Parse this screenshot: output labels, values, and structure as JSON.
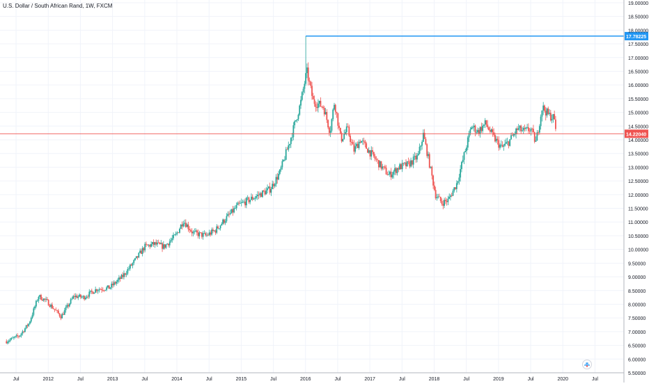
{
  "header": {
    "title": "U.S. Dollar / South African Rand, 1W, FXCM"
  },
  "price_axis": {
    "ticks": [
      "19.00000",
      "18.50000",
      "18.00000",
      "17.50000",
      "17.00000",
      "16.50000",
      "16.00000",
      "15.50000",
      "15.00000",
      "14.50000",
      "14.00000",
      "13.50000",
      "13.00000",
      "12.50000",
      "12.00000",
      "11.50000",
      "11.00000",
      "10.50000",
      "10.00000",
      "9.50000",
      "9.00000",
      "8.50000",
      "8.00000",
      "7.50000",
      "7.00000",
      "6.50000",
      "6.00000",
      "5.50000"
    ]
  },
  "time_axis": {
    "labels": [
      "Jul",
      "2012",
      "Jul",
      "2013",
      "Jul",
      "2014",
      "Jul",
      "2015",
      "Jul",
      "2016",
      "Jul",
      "2017",
      "Jul",
      "2018",
      "Jul",
      "2019",
      "Jul",
      "2020",
      "Jul"
    ]
  },
  "price_labels": {
    "high": "17.78225",
    "last": "14.22040"
  },
  "colors": {
    "up": "#26a69a",
    "down": "#ef5350",
    "high_line": "#2196f3",
    "last_line": "#ef5350",
    "grid": "#f0f3fa",
    "text": "#131722"
  },
  "chart_data": {
    "type": "candlestick",
    "title": "U.S. Dollar / South African Rand, 1W, FXCM",
    "ylim": [
      5.5,
      19.1
    ],
    "xlim": [
      2011.25,
      2020.95
    ],
    "high_line": 17.78225,
    "last_price": 14.2204,
    "grid": true,
    "anchors": [
      [
        2011.35,
        6.65
      ],
      [
        2011.55,
        6.85
      ],
      [
        2011.7,
        7.3
      ],
      [
        2011.85,
        8.3
      ],
      [
        2011.98,
        8.1
      ],
      [
        2012.2,
        7.55
      ],
      [
        2012.4,
        8.3
      ],
      [
        2012.55,
        8.25
      ],
      [
        2012.75,
        8.55
      ],
      [
        2012.95,
        8.6
      ],
      [
        2013.15,
        9.0
      ],
      [
        2013.35,
        9.6
      ],
      [
        2013.5,
        10.1
      ],
      [
        2013.65,
        10.2
      ],
      [
        2013.8,
        10.1
      ],
      [
        2013.98,
        10.5
      ],
      [
        2014.1,
        11.05
      ],
      [
        2014.25,
        10.6
      ],
      [
        2014.45,
        10.5
      ],
      [
        2014.6,
        10.7
      ],
      [
        2014.75,
        11.1
      ],
      [
        2014.95,
        11.6
      ],
      [
        2015.2,
        11.9
      ],
      [
        2015.45,
        12.2
      ],
      [
        2015.6,
        12.8
      ],
      [
        2015.75,
        13.9
      ],
      [
        2015.92,
        15.3
      ],
      [
        2016.02,
        16.5
      ],
      [
        2016.12,
        15.4
      ],
      [
        2016.28,
        15.2
      ],
      [
        2016.38,
        14.3
      ],
      [
        2016.45,
        15.4
      ],
      [
        2016.55,
        14.0
      ],
      [
        2016.65,
        14.4
      ],
      [
        2016.75,
        13.6
      ],
      [
        2016.85,
        14.0
      ],
      [
        2016.95,
        13.7
      ],
      [
        2017.15,
        13.1
      ],
      [
        2017.3,
        12.7
      ],
      [
        2017.45,
        13.0
      ],
      [
        2017.6,
        13.1
      ],
      [
        2017.75,
        13.4
      ],
      [
        2017.83,
        14.2
      ],
      [
        2017.92,
        13.2
      ],
      [
        2018.02,
        12.0
      ],
      [
        2018.12,
        11.7
      ],
      [
        2018.22,
        11.8
      ],
      [
        2018.35,
        12.4
      ],
      [
        2018.45,
        13.3
      ],
      [
        2018.58,
        14.5
      ],
      [
        2018.68,
        14.3
      ],
      [
        2018.8,
        14.6
      ],
      [
        2018.92,
        14.1
      ],
      [
        2019.05,
        13.7
      ],
      [
        2019.15,
        13.9
      ],
      [
        2019.3,
        14.4
      ],
      [
        2019.4,
        14.3
      ],
      [
        2019.5,
        14.4
      ],
      [
        2019.58,
        13.9
      ],
      [
        2019.68,
        15.2
      ],
      [
        2019.78,
        14.9
      ],
      [
        2019.86,
        14.8
      ],
      [
        2019.9,
        14.3
      ]
    ]
  }
}
